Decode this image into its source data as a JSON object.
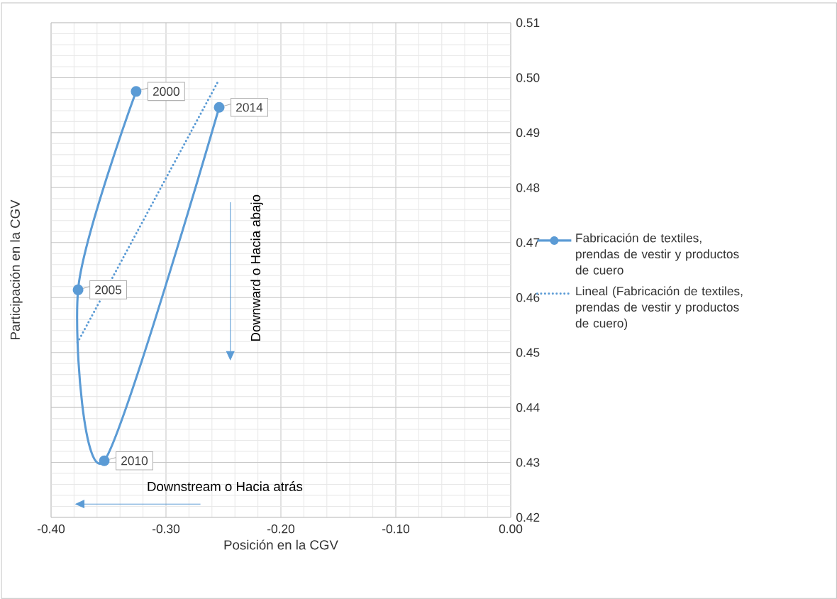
{
  "chart_data": {
    "type": "line",
    "xlabel": "Posición en la CGV",
    "ylabel": "Participación en la CGV",
    "series": [
      {
        "name": "Fabricación de textiles, prendas de vestir y productos de cuero",
        "color": "#5b9bd5",
        "x": [
          -0.326,
          -0.3765,
          -0.3537,
          -0.2537
        ],
        "values": [
          0.4975,
          0.4614,
          0.4303,
          0.4946
        ],
        "marker": "circle",
        "line_style": "solid"
      },
      {
        "name": "Lineal (Fabricación de textiles, prendas de vestir y productos de cuero)",
        "color": "#5b9bd5",
        "x": [
          -0.377,
          -0.255
        ],
        "values": [
          0.4518,
          0.4992
        ],
        "marker": "none",
        "line_style": "dotted"
      }
    ],
    "xlim": [
      -0.4,
      0
    ],
    "ylim": [
      0.42,
      0.51
    ],
    "xticks": [
      {
        "value": -0.4,
        "label": "-0.40"
      },
      {
        "value": -0.3,
        "label": "-0.30"
      },
      {
        "value": -0.2,
        "label": "-0.20"
      },
      {
        "value": -0.1,
        "label": "-0.10"
      },
      {
        "value": 0,
        "label": "0.00"
      }
    ],
    "yticks": [
      0.42,
      0.43,
      0.44,
      0.45,
      0.46,
      0.47,
      0.48,
      0.49,
      {
        "value": 0.5,
        "label": "0.50"
      },
      0.51
    ],
    "grid": true,
    "legend": "right",
    "annotations": [
      "Downward o Hacia abajo",
      "Downstream o Hacia atrás",
      {
        "text": "2000",
        "x": -0.326,
        "y": 0.4975
      },
      {
        "text": "2005",
        "x": -0.3765,
        "y": 0.4614
      },
      {
        "text": "2010",
        "x": -0.3537,
        "y": 0.4303
      },
      {
        "text": "2014",
        "x": -0.2537,
        "y": 0.4946
      }
    ]
  }
}
